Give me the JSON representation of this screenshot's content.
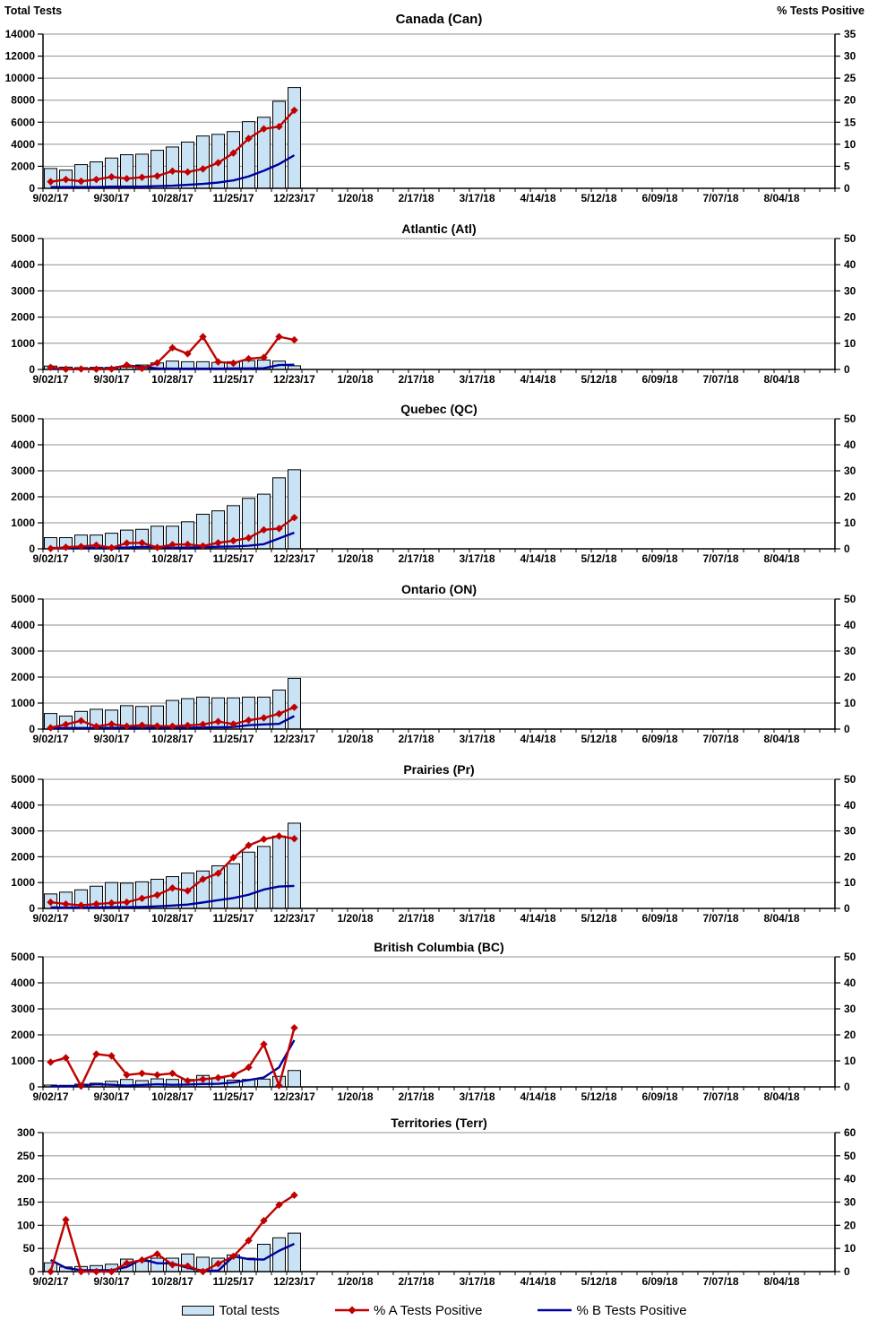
{
  "colors": {
    "bar_fill": "#C9E3F4",
    "bar_border": "#000000",
    "series_a_red": "#C00000",
    "series_b_blue": "#0000A0",
    "grid": "#909090",
    "text": "#000000"
  },
  "x_axis": {
    "tick_labels": [
      "9/02/17",
      "9/30/17",
      "10/28/17",
      "11/25/17",
      "12/23/17",
      "1/20/18",
      "2/17/18",
      "3/17/18",
      "4/14/18",
      "5/12/18",
      "6/09/18",
      "7/07/18",
      "8/04/18"
    ],
    "weeks_shown": 52,
    "data_start": "9/02/17",
    "data_end": "12/23/17"
  },
  "legend": {
    "items": [
      {
        "label": "Total tests",
        "marker": "bar-swatch"
      },
      {
        "label": "% A Tests Positive",
        "marker": "red-line-diamond"
      },
      {
        "label": "% B Tests Positive",
        "marker": "blue-line"
      }
    ]
  },
  "chart_data": [
    {
      "type": "bar+line",
      "title": "Canada (Can)",
      "left_axis": {
        "label": "Total Tests",
        "min": 0,
        "max": 14000,
        "step": 2000
      },
      "right_axis": {
        "label": "% Tests Positive",
        "min": 0,
        "max": 35,
        "step": 5
      },
      "categories": [
        "9/02/17",
        "9/09/17",
        "9/16/17",
        "9/23/17",
        "9/30/17",
        "10/07/17",
        "10/14/17",
        "10/21/17",
        "10/28/17",
        "11/04/17",
        "11/11/17",
        "11/18/17",
        "11/25/17",
        "12/02/17",
        "12/09/17",
        "12/16/17",
        "12/23/17"
      ],
      "series": [
        {
          "name": "Total tests",
          "type": "bar",
          "axis": "left",
          "values": [
            1800,
            1650,
            2150,
            2400,
            2750,
            3050,
            3100,
            3450,
            3750,
            4200,
            4750,
            4900,
            5150,
            6050,
            6450,
            7900,
            9150
          ]
        },
        {
          "name": "% A Tests Positive",
          "type": "line",
          "axis": "right",
          "values": [
            1.5,
            2.0,
            1.6,
            2.0,
            2.6,
            2.2,
            2.5,
            2.8,
            3.9,
            3.7,
            4.4,
            5.8,
            8.0,
            11.3,
            13.5,
            14.0,
            17.7
          ]
        },
        {
          "name": "% B Tests Positive",
          "type": "line",
          "axis": "right",
          "values": [
            0.3,
            0.3,
            0.3,
            0.3,
            0.4,
            0.4,
            0.4,
            0.5,
            0.6,
            0.8,
            1.0,
            1.3,
            1.8,
            2.7,
            4.0,
            5.5,
            7.5
          ]
        }
      ]
    },
    {
      "type": "bar+line",
      "title": "Atlantic (Atl)",
      "left_axis": {
        "label": "",
        "min": 0,
        "max": 5000,
        "step": 1000
      },
      "right_axis": {
        "label": "",
        "min": 0,
        "max": 50,
        "step": 10
      },
      "categories": [
        "9/02/17",
        "9/09/17",
        "9/16/17",
        "9/23/17",
        "9/30/17",
        "10/07/17",
        "10/14/17",
        "10/21/17",
        "10/28/17",
        "11/04/17",
        "11/11/17",
        "11/18/17",
        "11/25/17",
        "12/02/17",
        "12/09/17",
        "12/16/17",
        "12/23/17"
      ],
      "series": [
        {
          "name": "Total tests",
          "type": "bar",
          "axis": "left",
          "values": [
            130,
            90,
            70,
            80,
            80,
            90,
            170,
            250,
            320,
            295,
            295,
            270,
            295,
            340,
            360,
            320,
            140
          ]
        },
        {
          "name": "% A Tests Positive",
          "type": "line",
          "axis": "right",
          "values": [
            0.8,
            0.1,
            0.2,
            0.1,
            0.2,
            1.7,
            0.4,
            2.5,
            8.3,
            6.0,
            12.5,
            2.9,
            2.4,
            4.1,
            4.6,
            12.5,
            11.3
          ]
        },
        {
          "name": "% B Tests Positive",
          "type": "line",
          "axis": "right",
          "values": [
            0.3,
            0.2,
            0.2,
            0.3,
            0.5,
            1.5,
            1.0,
            0.4,
            0.3,
            0.3,
            0.3,
            0.3,
            0.4,
            0.4,
            0.5,
            1.7,
            1.8
          ]
        }
      ]
    },
    {
      "type": "bar+line",
      "title": "Quebec (QC)",
      "left_axis": {
        "label": "",
        "min": 0,
        "max": 5000,
        "step": 1000
      },
      "right_axis": {
        "label": "",
        "min": 0,
        "max": 50,
        "step": 10
      },
      "categories": [
        "9/02/17",
        "9/09/17",
        "9/16/17",
        "9/23/17",
        "9/30/17",
        "10/07/17",
        "10/14/17",
        "10/21/17",
        "10/28/17",
        "11/04/17",
        "11/11/17",
        "11/18/17",
        "11/25/17",
        "12/02/17",
        "12/09/17",
        "12/16/17",
        "12/23/17"
      ],
      "series": [
        {
          "name": "Total tests",
          "type": "bar",
          "axis": "left",
          "values": [
            430,
            430,
            530,
            530,
            600,
            720,
            750,
            870,
            870,
            1040,
            1330,
            1460,
            1660,
            1940,
            2100,
            2730,
            3040
          ]
        },
        {
          "name": "% A Tests Positive",
          "type": "line",
          "axis": "right",
          "values": [
            0.1,
            0.6,
            0.9,
            1.4,
            0.4,
            2.2,
            2.3,
            0.5,
            1.6,
            1.7,
            1.1,
            2.3,
            3.1,
            4.2,
            7.3,
            7.8,
            12.0
          ]
        },
        {
          "name": "% B Tests Positive",
          "type": "line",
          "axis": "right",
          "values": [
            0.3,
            0.3,
            0.4,
            0.4,
            0.4,
            0.5,
            0.7,
            0.8,
            0.4,
            0.5,
            0.6,
            0.8,
            0.9,
            1.2,
            1.8,
            4.0,
            6.2
          ]
        }
      ]
    },
    {
      "type": "bar+line",
      "title": "Ontario (ON)",
      "left_axis": {
        "label": "",
        "min": 0,
        "max": 5000,
        "step": 1000
      },
      "right_axis": {
        "label": "",
        "min": 0,
        "max": 50,
        "step": 10
      },
      "categories": [
        "9/02/17",
        "9/09/17",
        "9/16/17",
        "9/23/17",
        "9/30/17",
        "10/07/17",
        "10/14/17",
        "10/21/17",
        "10/28/17",
        "11/04/17",
        "11/11/17",
        "11/18/17",
        "11/25/17",
        "12/02/17",
        "12/09/17",
        "12/16/17",
        "12/23/17"
      ],
      "series": [
        {
          "name": "Total tests",
          "type": "bar",
          "axis": "left",
          "values": [
            600,
            500,
            680,
            760,
            730,
            900,
            870,
            890,
            1100,
            1170,
            1230,
            1200,
            1200,
            1230,
            1230,
            1500,
            1950
          ]
        },
        {
          "name": "% A Tests Positive",
          "type": "line",
          "axis": "right",
          "values": [
            0.5,
            1.8,
            3.2,
            1.0,
            1.9,
            1.1,
            1.5,
            1.2,
            1.1,
            1.4,
            1.8,
            2.9,
            1.9,
            3.4,
            4.3,
            5.9,
            8.4
          ]
        },
        {
          "name": "% B Tests Positive",
          "type": "line",
          "axis": "right",
          "values": [
            0.3,
            0.4,
            0.4,
            0.4,
            0.5,
            0.5,
            0.5,
            0.5,
            0.5,
            0.5,
            0.6,
            0.7,
            0.8,
            1.5,
            1.8,
            2.0,
            5.0
          ]
        }
      ]
    },
    {
      "type": "bar+line",
      "title": "Prairies (Pr)",
      "left_axis": {
        "label": "",
        "min": 0,
        "max": 5000,
        "step": 1000
      },
      "right_axis": {
        "label": "",
        "min": 0,
        "max": 50,
        "step": 10
      },
      "categories": [
        "9/02/17",
        "9/09/17",
        "9/16/17",
        "9/23/17",
        "9/30/17",
        "10/07/17",
        "10/14/17",
        "10/21/17",
        "10/28/17",
        "11/04/17",
        "11/11/17",
        "11/18/17",
        "11/25/17",
        "12/02/17",
        "12/09/17",
        "12/16/17",
        "12/23/17"
      ],
      "series": [
        {
          "name": "Total tests",
          "type": "bar",
          "axis": "left",
          "values": [
            560,
            630,
            720,
            860,
            1000,
            980,
            1030,
            1130,
            1230,
            1370,
            1450,
            1650,
            1730,
            2180,
            2400,
            2800,
            3300
          ]
        },
        {
          "name": "% A Tests Positive",
          "type": "line",
          "axis": "right",
          "values": [
            2.4,
            1.7,
            1.2,
            1.7,
            2.1,
            2.4,
            3.9,
            5.2,
            7.9,
            6.8,
            11.3,
            13.6,
            19.7,
            24.4,
            26.8,
            28.0,
            27.0
          ]
        },
        {
          "name": "% B Tests Positive",
          "type": "line",
          "axis": "right",
          "values": [
            0.4,
            0.3,
            0.3,
            0.4,
            0.5,
            0.5,
            0.6,
            0.8,
            1.1,
            1.5,
            2.3,
            3.2,
            4.0,
            5.3,
            7.3,
            8.5,
            8.7
          ]
        }
      ]
    },
    {
      "type": "bar+line",
      "title": "British Columbia (BC)",
      "left_axis": {
        "label": "",
        "min": 0,
        "max": 5000,
        "step": 1000
      },
      "right_axis": {
        "label": "",
        "min": 0,
        "max": 50,
        "step": 10
      },
      "categories": [
        "9/02/17",
        "9/09/17",
        "9/16/17",
        "9/23/17",
        "9/30/17",
        "10/07/17",
        "10/14/17",
        "10/21/17",
        "10/28/17",
        "11/04/17",
        "11/11/17",
        "11/18/17",
        "11/25/17",
        "12/02/17",
        "12/09/17",
        "12/16/17",
        "12/23/17"
      ],
      "series": [
        {
          "name": "Total tests",
          "type": "bar",
          "axis": "left",
          "values": [
            70,
            60,
            105,
            140,
            215,
            285,
            240,
            310,
            285,
            285,
            440,
            345,
            260,
            285,
            300,
            405,
            630
          ]
        },
        {
          "name": "% A Tests Positive",
          "type": "line",
          "axis": "right",
          "values": [
            9.5,
            11.2,
            0.3,
            12.6,
            11.9,
            4.6,
            5.2,
            4.6,
            5.2,
            2.3,
            2.9,
            3.5,
            4.5,
            7.5,
            16.4,
            0.5,
            22.7
          ]
        },
        {
          "name": "% B Tests Positive",
          "type": "line",
          "axis": "right",
          "values": [
            0.3,
            0.2,
            0.5,
            1.0,
            0.8,
            0.5,
            0.7,
            1.0,
            0.8,
            0.9,
            1.1,
            1.2,
            1.7,
            2.6,
            3.6,
            7.5,
            18.0
          ]
        }
      ]
    },
    {
      "type": "bar+line",
      "title": "Territories (Terr)",
      "left_axis": {
        "label": "",
        "min": 0,
        "max": 300,
        "step": 50
      },
      "right_axis": {
        "label": "",
        "min": 0,
        "max": 60,
        "step": 10
      },
      "categories": [
        "9/02/17",
        "9/09/17",
        "9/16/17",
        "9/23/17",
        "9/30/17",
        "10/07/17",
        "10/14/17",
        "10/21/17",
        "10/28/17",
        "11/04/17",
        "11/11/17",
        "11/18/17",
        "11/25/17",
        "12/02/17",
        "12/09/17",
        "12/16/17",
        "12/23/17"
      ],
      "series": [
        {
          "name": "Total tests",
          "type": "bar",
          "axis": "left",
          "values": [
            19,
            10,
            11,
            13,
            16,
            27,
            22,
            29,
            29,
            38,
            31,
            29,
            36,
            29,
            59,
            73,
            83
          ]
        },
        {
          "name": "% A Tests Positive",
          "type": "line",
          "axis": "right",
          "values": [
            0,
            22.4,
            0,
            0,
            0,
            3.6,
            5.0,
            7.6,
            3.0,
            2.4,
            0,
            3.4,
            6.6,
            13.4,
            22.0,
            28.8,
            33.0
          ]
        },
        {
          "name": "% B Tests Positive",
          "type": "line",
          "axis": "right",
          "values": [
            5.0,
            1.6,
            0.6,
            0.6,
            0.6,
            2.0,
            5.4,
            3.6,
            3.6,
            1.6,
            0.4,
            0.4,
            6.6,
            5.4,
            5.2,
            9.0,
            12.0
          ]
        }
      ]
    }
  ]
}
